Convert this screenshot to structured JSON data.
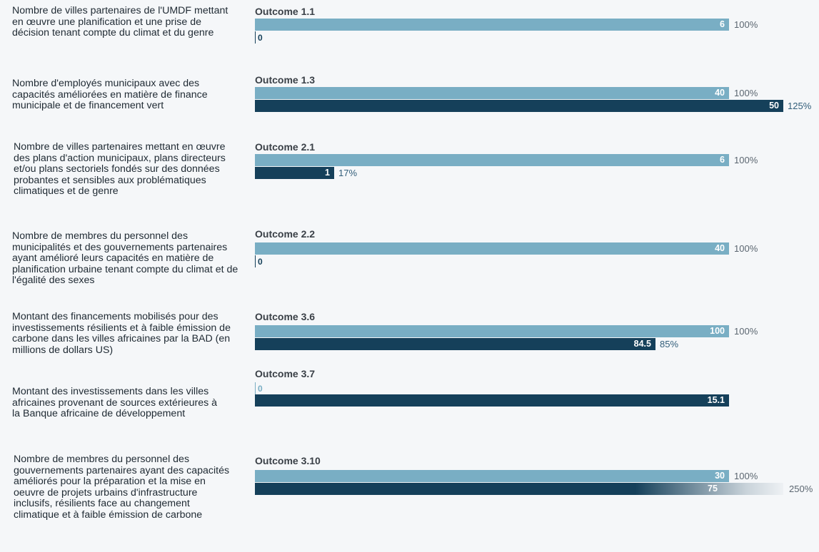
{
  "chart_data": {
    "type": "bar",
    "orientation": "horizontal",
    "series_colors": {
      "target": "#79aec4",
      "actual": "#15405a"
    },
    "rows": [
      {
        "description": "Nombre de villes partenaires de l'UMDF mettant en œuvre une planification et une prise de décision tenant compte du climat et du genre",
        "outcome": "Outcome 1.1",
        "target": 6,
        "target_label": "6",
        "target_pct": "100%",
        "actual": 0,
        "actual_label": "0",
        "actual_pct": ""
      },
      {
        "description": "Nombre d'employés municipaux avec des capacités améliorées en matière de finance municipale et de financement vert",
        "outcome": "Outcome 1.3",
        "target": 40,
        "target_label": "40",
        "target_pct": "100%",
        "actual": 50,
        "actual_label": "50",
        "actual_pct": "125%"
      },
      {
        "description": "Nombre de villes partenaires mettant en œuvre des plans d'action municipaux, plans directeurs et/ou plans sectoriels fondés sur des données probantes et sensibles aux problématiques climatiques et de genre",
        "outcome": "Outcome 2.1",
        "target": 6,
        "target_label": "6",
        "target_pct": "100%",
        "actual": 1,
        "actual_label": "1",
        "actual_pct": "17%"
      },
      {
        "description": "Nombre de membres du personnel des municipalités et des gouvernements partenaires ayant amélioré leurs capacités en matière de planification urbaine tenant compte du climat et de l'égalité des sexes",
        "outcome": "Outcome 2.2",
        "target": 40,
        "target_label": "40",
        "target_pct": "100%",
        "actual": 0,
        "actual_label": "0",
        "actual_pct": ""
      },
      {
        "description": "Montant des financements mobilisés pour des investissements résilients et à faible émission de carbone dans les villes africaines par la BAD (en millions de dollars US)",
        "outcome": "Outcome 3.6",
        "target": 100,
        "target_label": "100",
        "target_pct": "100%",
        "actual": 84.5,
        "actual_label": "84.5",
        "actual_pct": "85%"
      },
      {
        "description": "Montant des investissements dans les villes africaines provenant de sources extérieures à la Banque africaine de développement",
        "outcome": "Outcome 3.7",
        "target": 0,
        "target_label": "0",
        "target_pct": "",
        "actual": 15.1,
        "actual_label": "15.1",
        "actual_pct": ""
      },
      {
        "description": "Nombre de membres du personnel des gouvernements partenaires ayant des capacités améliorés pour la préparation et la mise en oeuvre de projets urbains d'infrastructure inclusifs, résilients face au changement climatique et à faible émission de carbone",
        "outcome": "Outcome 3.10",
        "target": 30,
        "target_label": "30",
        "target_pct": "100%",
        "actual": 75,
        "actual_label": "75",
        "actual_pct": "250%"
      }
    ]
  }
}
